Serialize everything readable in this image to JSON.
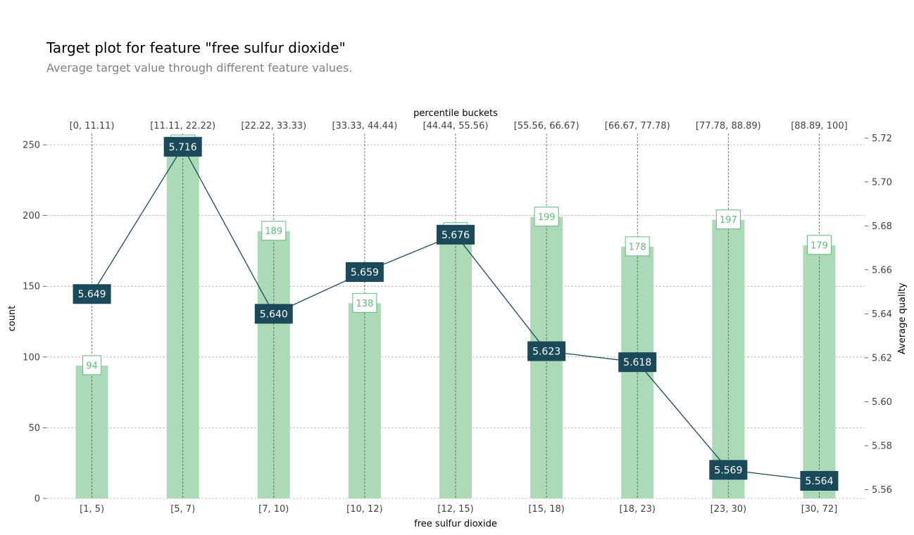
{
  "title": "Target plot for feature \"free sulfur dioxide\"",
  "subtitle": "Average target value through different feature values.",
  "colors": {
    "bar": "#acdab7",
    "bar_label": "#5fba7d",
    "line": "#1a4a5a",
    "grid": "#b0b0b0",
    "tick_text": "#424242"
  },
  "chart_data": {
    "type": "bar",
    "categories": [
      "[1, 5)",
      "[5, 7)",
      "[7, 10)",
      "[10, 12)",
      "[12, 15)",
      "[15, 18)",
      "[18, 23)",
      "[23, 30)",
      "[30, 72]"
    ],
    "percentile_buckets": [
      "[0, 11.11)",
      "[11.11, 22.22)",
      "[22.22, 33.33)",
      "[33.33, 44.44)",
      "[44.44, 55.56)",
      "[55.56, 66.67)",
      "[66.67, 77.78)",
      "[77.78, 88.89)",
      "[88.89, 100]"
    ],
    "series": [
      {
        "type": "bar",
        "axis": "left",
        "values": [
          94,
          250,
          189,
          138,
          188,
          199,
          178,
          197,
          179
        ]
      },
      {
        "type": "line",
        "axis": "right",
        "values": [
          5.649,
          5.716,
          5.64,
          5.659,
          5.676,
          5.623,
          5.618,
          5.569,
          5.564
        ]
      }
    ],
    "xlabel": "free sulfur dioxide",
    "top_xlabel": "percentile buckets",
    "ylabel_left": "count",
    "ylabel_right": "Average quality",
    "ylim_left": [
      0,
      250
    ],
    "ylim_right": [
      5.556,
      5.722
    ],
    "yticks_left": [
      0,
      50,
      100,
      150,
      200,
      250
    ],
    "yticks_right": [
      5.56,
      5.58,
      5.6,
      5.62,
      5.64,
      5.66,
      5.68,
      5.7,
      5.72
    ],
    "grid": true
  }
}
